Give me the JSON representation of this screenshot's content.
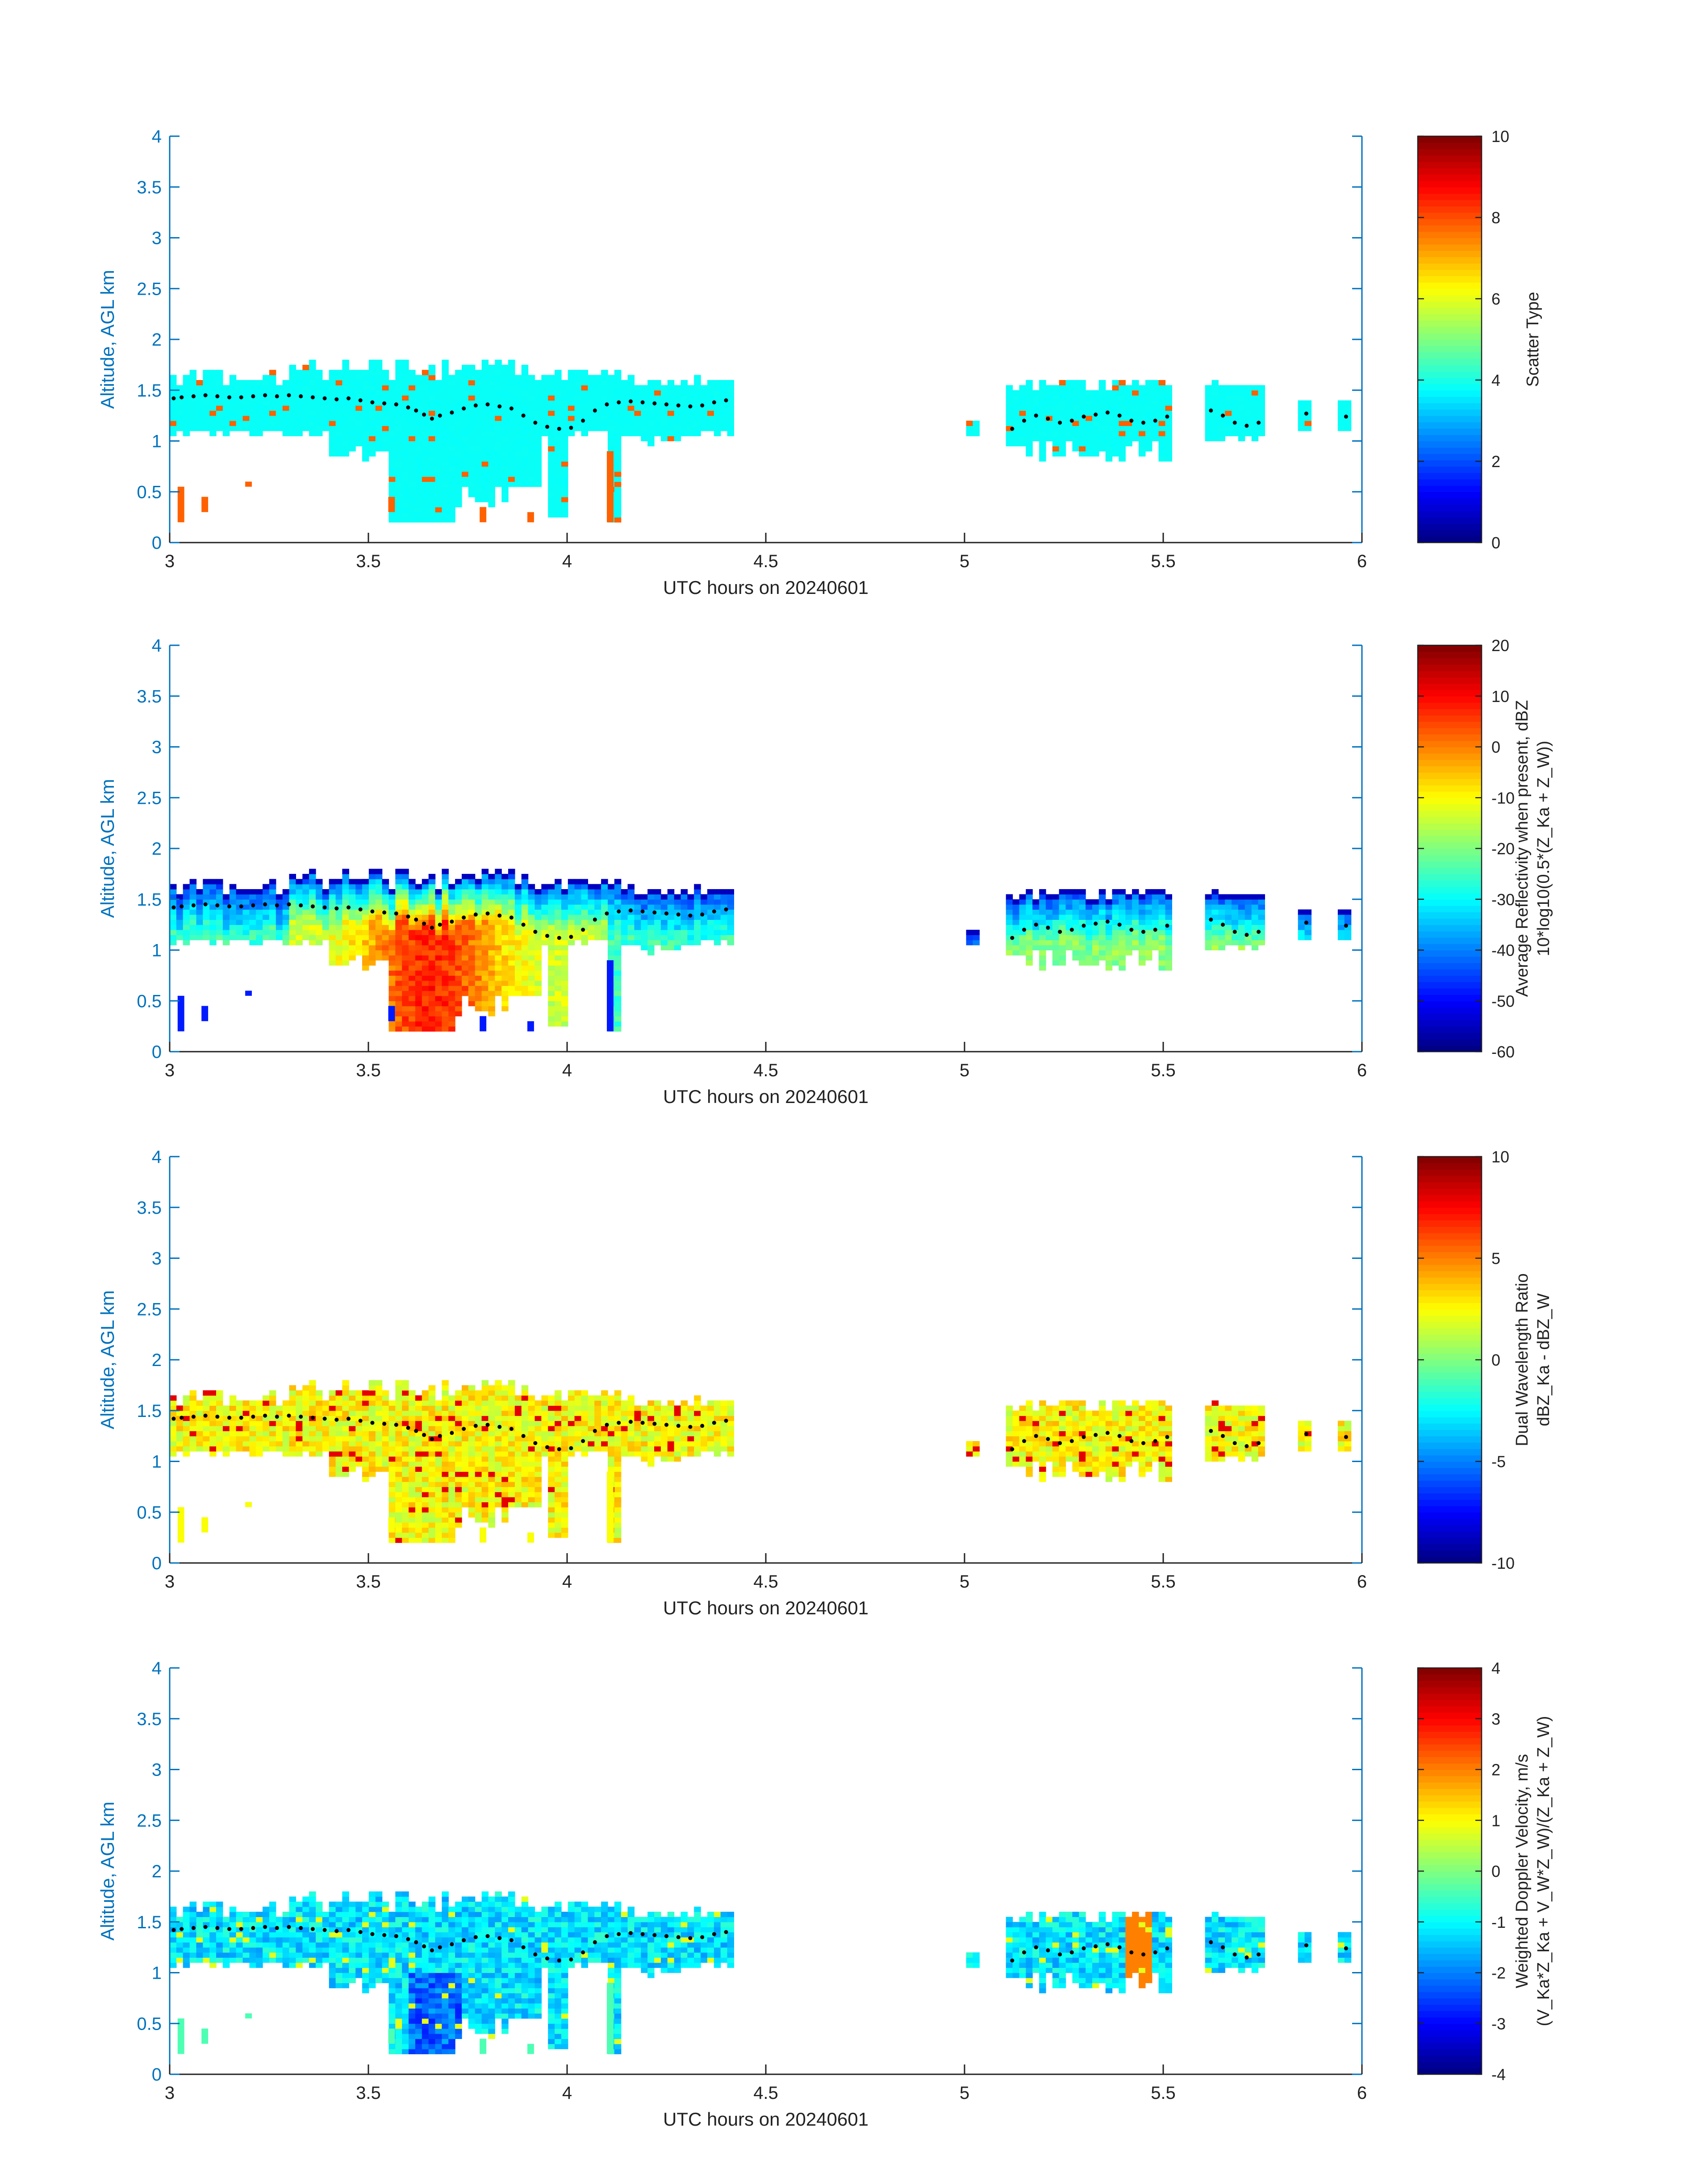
{
  "figure": {
    "date_label": "UTC hours on 20240601",
    "ylabel": "Altitude, AGL km"
  },
  "chart_data": [
    {
      "type": "heatmap",
      "xlabel": "UTC hours on 20240601",
      "ylabel": "Altitude, AGL km",
      "xlim": [
        3,
        6
      ],
      "ylim": [
        0,
        4
      ],
      "xticks": [
        "3",
        "3.5",
        "4",
        "4.5",
        "5",
        "5.5",
        "6"
      ],
      "yticks": [
        "0",
        "0.5",
        "1",
        "1.5",
        "2",
        "2.5",
        "3",
        "3.5",
        "4"
      ],
      "colorbar": {
        "label_lines": [
          "Scatter Type"
        ],
        "range": [
          0,
          10
        ],
        "ticks": [
          "0",
          "2",
          "4",
          "6",
          "8",
          "10"
        ]
      },
      "cloud_top_dots": true
    },
    {
      "type": "heatmap",
      "xlabel": "UTC hours on 20240601",
      "ylabel": "Altitude, AGL km",
      "xlim": [
        3,
        6
      ],
      "ylim": [
        0,
        4
      ],
      "xticks": [
        "3",
        "3.5",
        "4",
        "4.5",
        "5",
        "5.5",
        "6"
      ],
      "yticks": [
        "0",
        "0.5",
        "1",
        "1.5",
        "2",
        "2.5",
        "3",
        "3.5",
        "4"
      ],
      "colorbar": {
        "label_lines": [
          "Average Reflectivity when present, dBZ",
          "10*log10(0.5*(Z_Ka + Z_W))"
        ],
        "range": [
          -60,
          20
        ],
        "ticks": [
          "-60",
          "-50",
          "-40",
          "-30",
          "-20",
          "-10",
          "0",
          "10",
          "20"
        ]
      },
      "cloud_top_dots": true
    },
    {
      "type": "heatmap",
      "xlabel": "UTC hours on 20240601",
      "ylabel": "Altitude, AGL km",
      "xlim": [
        3,
        6
      ],
      "ylim": [
        0,
        4
      ],
      "xticks": [
        "3",
        "3.5",
        "4",
        "4.5",
        "5",
        "5.5",
        "6"
      ],
      "yticks": [
        "0",
        "0.5",
        "1",
        "1.5",
        "2",
        "2.5",
        "3",
        "3.5",
        "4"
      ],
      "colorbar": {
        "label_lines": [
          "Dual Wavelength Ratio",
          "dBZ_Ka - dBZ_W"
        ],
        "range": [
          -10,
          10
        ],
        "ticks": [
          "-10",
          "-5",
          "0",
          "5",
          "10"
        ]
      },
      "cloud_top_dots": true
    },
    {
      "type": "heatmap",
      "xlabel": "UTC hours on 20240601",
      "ylabel": "Altitude, AGL km",
      "xlim": [
        3,
        6
      ],
      "ylim": [
        0,
        4
      ],
      "xticks": [
        "3",
        "3.5",
        "4",
        "4.5",
        "5",
        "5.5",
        "6"
      ],
      "yticks": [
        "0",
        "0.5",
        "1",
        "1.5",
        "2",
        "2.5",
        "3",
        "3.5",
        "4"
      ],
      "colorbar": {
        "label_lines": [
          "Weighted Doppler Velocity, m/s",
          "(V_Ka*Z_Ka + V_W*Z_W)/(Z_Ka + Z_W)"
        ],
        "range": [
          -4,
          4
        ],
        "ticks": [
          "-4",
          "-3",
          "-2",
          "-1",
          "0",
          "1",
          "2",
          "3",
          "4"
        ]
      },
      "cloud_top_dots": true
    }
  ],
  "cloud_top_estimate_km": [
    [
      3.01,
      1.42
    ],
    [
      3.03,
      1.43
    ],
    [
      3.06,
      1.44
    ],
    [
      3.09,
      1.45
    ],
    [
      3.12,
      1.44
    ],
    [
      3.15,
      1.43
    ],
    [
      3.18,
      1.43
    ],
    [
      3.21,
      1.44
    ],
    [
      3.24,
      1.45
    ],
    [
      3.27,
      1.44
    ],
    [
      3.3,
      1.45
    ],
    [
      3.33,
      1.44
    ],
    [
      3.36,
      1.43
    ],
    [
      3.39,
      1.42
    ],
    [
      3.42,
      1.41
    ],
    [
      3.45,
      1.42
    ],
    [
      3.48,
      1.4
    ],
    [
      3.51,
      1.38
    ],
    [
      3.54,
      1.37
    ],
    [
      3.57,
      1.36
    ],
    [
      3.6,
      1.33
    ],
    [
      3.62,
      1.3
    ],
    [
      3.64,
      1.26
    ],
    [
      3.66,
      1.22
    ],
    [
      3.68,
      1.25
    ],
    [
      3.71,
      1.28
    ],
    [
      3.74,
      1.32
    ],
    [
      3.77,
      1.35
    ],
    [
      3.8,
      1.36
    ],
    [
      3.83,
      1.34
    ],
    [
      3.86,
      1.32
    ],
    [
      3.89,
      1.25
    ],
    [
      3.92,
      1.18
    ],
    [
      3.95,
      1.14
    ],
    [
      3.98,
      1.12
    ],
    [
      4.01,
      1.13
    ],
    [
      4.04,
      1.2
    ],
    [
      4.07,
      1.3
    ],
    [
      4.1,
      1.36
    ],
    [
      4.13,
      1.38
    ],
    [
      4.16,
      1.39
    ],
    [
      4.19,
      1.38
    ],
    [
      4.22,
      1.37
    ],
    [
      4.25,
      1.36
    ],
    [
      4.28,
      1.35
    ],
    [
      4.31,
      1.34
    ],
    [
      4.34,
      1.35
    ],
    [
      4.37,
      1.38
    ],
    [
      4.4,
      1.4
    ],
    [
      5.12,
      1.12
    ],
    [
      5.15,
      1.2
    ],
    [
      5.18,
      1.25
    ],
    [
      5.21,
      1.22
    ],
    [
      5.24,
      1.18
    ],
    [
      5.27,
      1.2
    ],
    [
      5.3,
      1.24
    ],
    [
      5.33,
      1.26
    ],
    [
      5.36,
      1.28
    ],
    [
      5.39,
      1.25
    ],
    [
      5.42,
      1.2
    ],
    [
      5.45,
      1.18
    ],
    [
      5.48,
      1.2
    ],
    [
      5.51,
      1.24
    ],
    [
      5.62,
      1.3
    ],
    [
      5.65,
      1.25
    ],
    [
      5.68,
      1.18
    ],
    [
      5.71,
      1.15
    ],
    [
      5.74,
      1.18
    ],
    [
      5.86,
      1.27
    ],
    [
      5.96,
      1.24
    ]
  ]
}
